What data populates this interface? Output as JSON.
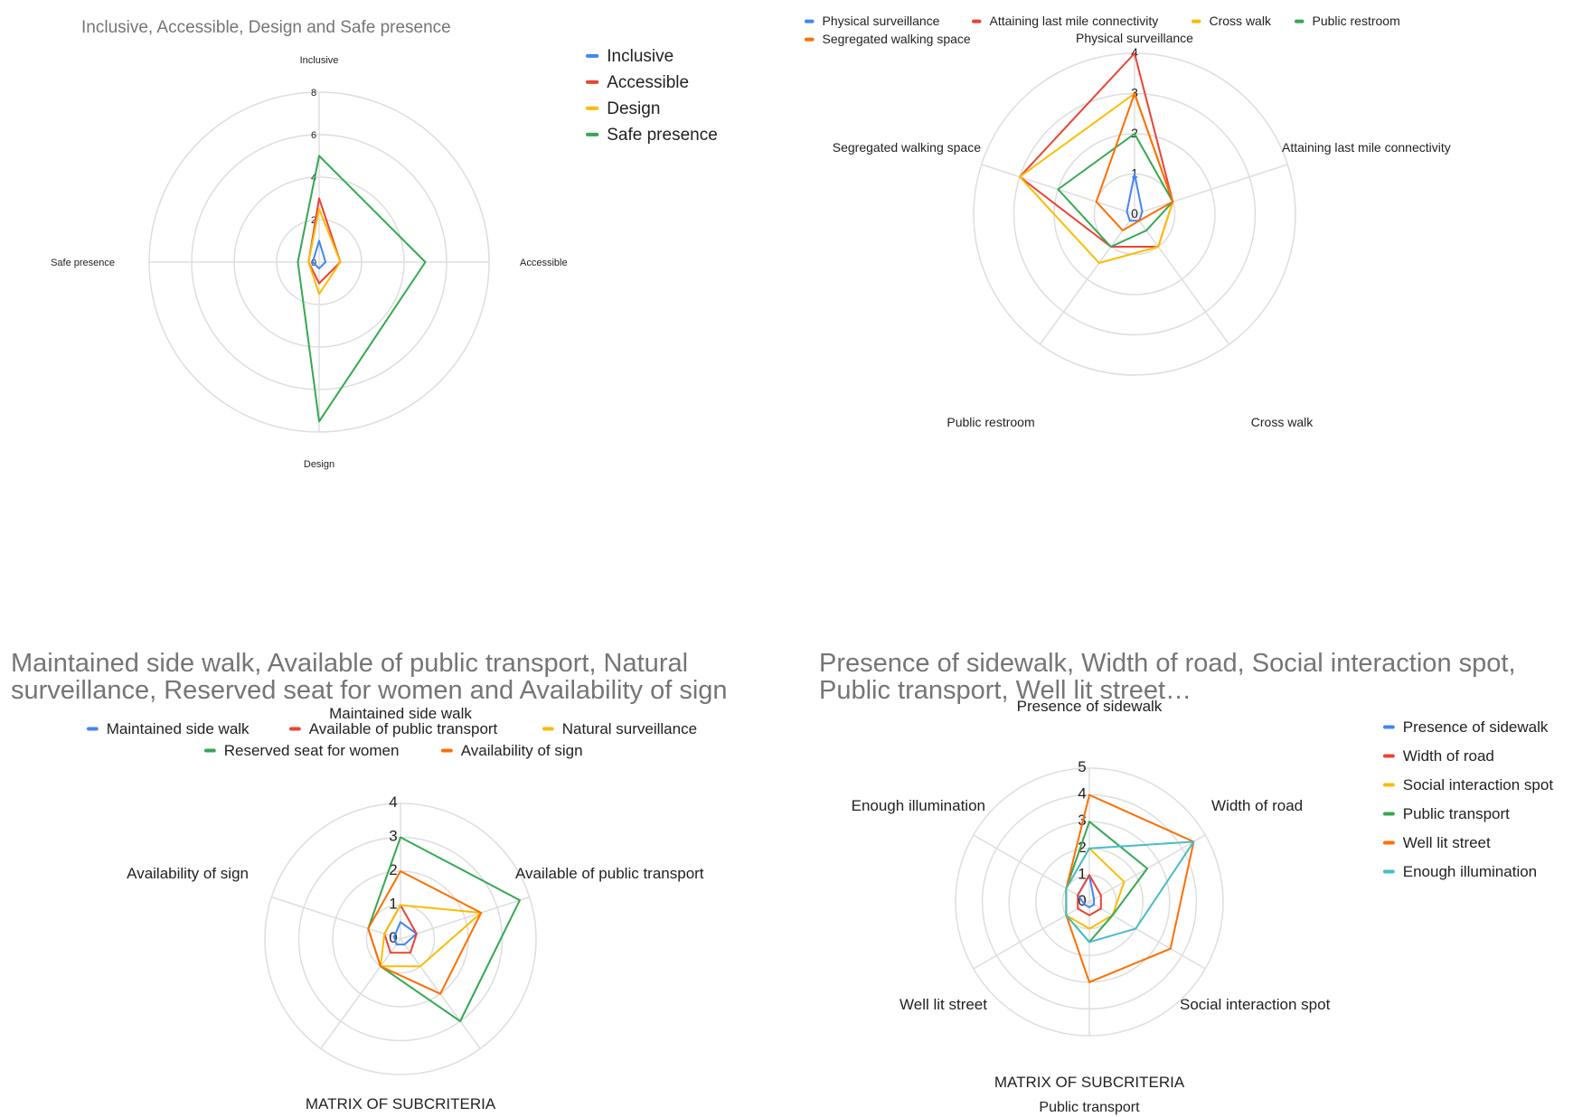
{
  "colors": {
    "blue": "#4285F4",
    "red": "#EA4335",
    "yellow": "#FBBC04",
    "green": "#34A853",
    "orange": "#FF6D01",
    "cyan": "#46BDC6",
    "grid": "#dddddd"
  },
  "chart_data": [
    {
      "type": "radar",
      "title": "Inclusive, Accessible, Design and Safe presence",
      "subtitle": "",
      "axes": [
        "Inclusive",
        "Accessible",
        "Design",
        "Safe presence"
      ],
      "rmax": 8,
      "ticks": [
        "0",
        "2",
        "4",
        "6",
        "8"
      ],
      "legend_position": "right",
      "series": [
        {
          "name": "Inclusive",
          "color": "blue",
          "values": [
            1,
            0.3,
            0.3,
            0.3
          ]
        },
        {
          "name": "Accessible",
          "color": "red",
          "values": [
            3,
            1,
            1,
            0.5
          ]
        },
        {
          "name": "Design",
          "color": "yellow",
          "values": [
            2.5,
            1,
            1.5,
            0.5
          ]
        },
        {
          "name": "Safe presence",
          "color": "green",
          "values": [
            5,
            5,
            7.5,
            1
          ]
        }
      ]
    },
    {
      "type": "radar",
      "title": "",
      "axes": [
        "Physical surveillance",
        "Attaining last mile connectivity",
        "Cross walk",
        "Public restroom",
        "Segregated walking space"
      ],
      "rmax": 4,
      "ticks": [
        "0",
        "1",
        "2",
        "3",
        "4"
      ],
      "legend_position": "top",
      "series": [
        {
          "name": "Physical surveillance",
          "color": "blue",
          "values": [
            1,
            0.2,
            0.2,
            0.2,
            0.2
          ]
        },
        {
          "name": "Attaining last mile connectivity",
          "color": "red",
          "values": [
            4,
            1,
            1,
            1,
            3
          ]
        },
        {
          "name": "Cross walk",
          "color": "yellow",
          "values": [
            3,
            1,
            1,
            1.5,
            3
          ]
        },
        {
          "name": "Public restroom",
          "color": "green",
          "values": [
            2,
            1,
            0.5,
            1,
            2
          ]
        },
        {
          "name": "Segregated walking space",
          "color": "orange",
          "values": [
            3,
            1,
            0.2,
            0.5,
            1
          ]
        }
      ]
    },
    {
      "type": "radar",
      "title": "Maintained side walk, Available of public transport, Natural surveillance, Reserved seat for women and Availability of sign",
      "title_lines": [
        "Maintained side walk, Available of public transport, Natural",
        "surveillance, Reserved seat for women and Availability of sign"
      ],
      "axes": [
        "Maintained side walk",
        "Available of public transport",
        "MATRIX OF SUBCRITERIA",
        "",
        "Availability of sign"
      ],
      "rmax": 4,
      "ticks": [
        "0",
        "1",
        "2",
        "3",
        "4"
      ],
      "legend_position": "top",
      "series": [
        {
          "name": "Maintained side walk",
          "color": "blue",
          "values": [
            0.5,
            0.5,
            0.2,
            0.2,
            0.2
          ]
        },
        {
          "name": "Available of public transport",
          "color": "red",
          "values": [
            1,
            0.5,
            0.5,
            0.5,
            0.5
          ]
        },
        {
          "name": "Natural surveillance",
          "color": "yellow",
          "values": [
            1,
            2.5,
            1,
            1,
            0.5
          ]
        },
        {
          "name": "Reserved seat for women",
          "color": "green",
          "values": [
            3,
            3.7,
            3,
            1,
            1
          ]
        },
        {
          "name": "Availability of sign",
          "color": "orange",
          "values": [
            2,
            2.5,
            2,
            1,
            1
          ]
        }
      ]
    },
    {
      "type": "radar",
      "title": "Presence of sidewalk, Width of road, Social interaction spot, Public transport, Well lit street…",
      "title_lines": [
        "Presence of sidewalk, Width of road, Social interaction spot,",
        "Public transport, Well lit street…"
      ],
      "axes": [
        "Presence of sidewalk",
        "Width of road",
        "Social interaction spot",
        "MATRIX OF SUBCRITERIA",
        "Well lit street",
        "Enough illumination"
      ],
      "bottom_caption": "Public transport",
      "rmax": 5,
      "ticks": [
        "0",
        "1",
        "2",
        "3",
        "4",
        "5"
      ],
      "legend_position": "right",
      "series": [
        {
          "name": "Presence of sidewalk",
          "color": "blue",
          "values": [
            1,
            0.2,
            0.2,
            0.2,
            0.2,
            0.5
          ]
        },
        {
          "name": "Width of road",
          "color": "red",
          "values": [
            1,
            0.5,
            0.5,
            0.5,
            0.5,
            0.5
          ]
        },
        {
          "name": "Social interaction spot",
          "color": "yellow",
          "values": [
            2,
            1.5,
            1,
            1,
            1,
            1
          ]
        },
        {
          "name": "Public transport",
          "color": "green",
          "values": [
            3,
            2.5,
            1,
            1.5,
            1,
            1
          ]
        },
        {
          "name": "Well lit street",
          "color": "orange",
          "values": [
            4,
            4.5,
            3.5,
            3,
            1,
            1
          ]
        },
        {
          "name": "Enough illumination",
          "color": "cyan",
          "values": [
            2,
            4.5,
            2,
            1.5,
            1,
            1
          ]
        }
      ]
    }
  ]
}
